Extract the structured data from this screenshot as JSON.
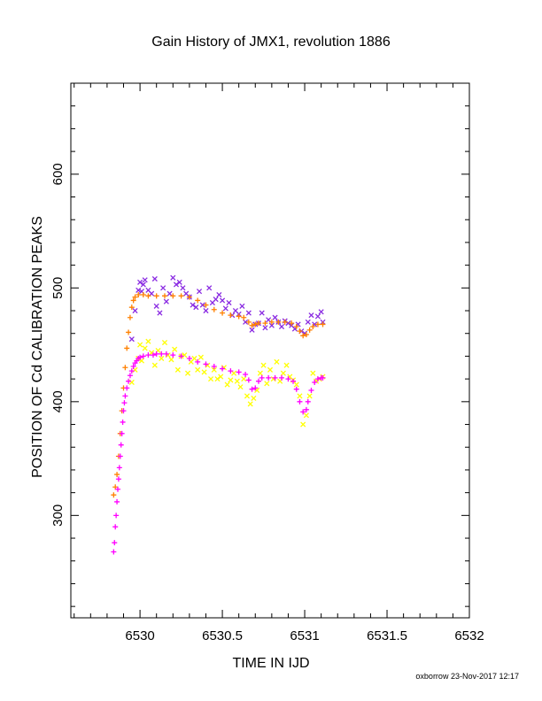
{
  "chart_data": {
    "type": "scatter",
    "title": "Gain History of JMX1, revolution 1886",
    "xlabel": "TIME IN IJD",
    "ylabel": "POSITION OF Cd CALIBRATION PEAKS",
    "xlim": [
      6529.58,
      6532.0
    ],
    "ylim": [
      210,
      680
    ],
    "x_ticks": [
      6530,
      6530.5,
      6531,
      6531.5,
      6532
    ],
    "x_tick_labels": [
      "6530",
      "6530.5",
      "6531",
      "6531.5",
      "6532"
    ],
    "y_ticks": [
      300,
      400,
      500,
      600
    ],
    "y_tick_labels": [
      "300",
      "400",
      "500",
      "600"
    ],
    "grid": false,
    "legend": "none",
    "series": [
      {
        "color": "#8a2be2",
        "marker": "x",
        "points": [
          [
            6529.95,
            455
          ],
          [
            6529.97,
            480
          ],
          [
            6529.99,
            498
          ],
          [
            6530.0,
            505
          ],
          [
            6530.01,
            497
          ],
          [
            6530.02,
            503
          ],
          [
            6530.03,
            507
          ],
          [
            6530.05,
            498
          ],
          [
            6530.07,
            495
          ],
          [
            6530.09,
            508
          ],
          [
            6530.1,
            484
          ],
          [
            6530.12,
            478
          ],
          [
            6530.14,
            500
          ],
          [
            6530.16,
            488
          ],
          [
            6530.18,
            495
          ],
          [
            6530.2,
            509
          ],
          [
            6530.22,
            503
          ],
          [
            6530.24,
            505
          ],
          [
            6530.26,
            500
          ],
          [
            6530.28,
            495
          ],
          [
            6530.3,
            492
          ],
          [
            6530.32,
            485
          ],
          [
            6530.34,
            483
          ],
          [
            6530.36,
            497
          ],
          [
            6530.38,
            485
          ],
          [
            6530.4,
            480
          ],
          [
            6530.42,
            500
          ],
          [
            6530.44,
            487
          ],
          [
            6530.46,
            490
          ],
          [
            6530.48,
            494
          ],
          [
            6530.5,
            489
          ],
          [
            6530.52,
            482
          ],
          [
            6530.54,
            487
          ],
          [
            6530.56,
            476
          ],
          [
            6530.58,
            480
          ],
          [
            6530.6,
            477
          ],
          [
            6530.62,
            484
          ],
          [
            6530.64,
            470
          ],
          [
            6530.66,
            478
          ],
          [
            6530.68,
            463
          ],
          [
            6530.7,
            468
          ],
          [
            6530.72,
            469
          ],
          [
            6530.74,
            478
          ],
          [
            6530.76,
            465
          ],
          [
            6530.78,
            472
          ],
          [
            6530.8,
            467
          ],
          [
            6530.82,
            474
          ],
          [
            6530.84,
            470
          ],
          [
            6530.86,
            466
          ],
          [
            6530.88,
            471
          ],
          [
            6530.9,
            469
          ],
          [
            6530.92,
            467
          ],
          [
            6530.94,
            464
          ],
          [
            6530.96,
            468
          ],
          [
            6530.98,
            462
          ],
          [
            6531.0,
            460
          ],
          [
            6531.02,
            470
          ],
          [
            6531.04,
            476
          ],
          [
            6531.06,
            468
          ],
          [
            6531.08,
            475
          ],
          [
            6531.1,
            479
          ],
          [
            6531.11,
            470
          ]
        ]
      },
      {
        "color": "#ff8000",
        "marker": "+",
        "points": [
          [
            6529.84,
            318
          ],
          [
            6529.85,
            325
          ],
          [
            6529.86,
            336
          ],
          [
            6529.87,
            352
          ],
          [
            6529.88,
            372
          ],
          [
            6529.89,
            392
          ],
          [
            6529.9,
            412
          ],
          [
            6529.91,
            430
          ],
          [
            6529.92,
            447
          ],
          [
            6529.93,
            461
          ],
          [
            6529.94,
            474
          ],
          [
            6529.95,
            483
          ],
          [
            6529.96,
            489
          ],
          [
            6529.97,
            492
          ],
          [
            6529.99,
            494
          ],
          [
            6530.02,
            494
          ],
          [
            6530.05,
            493
          ],
          [
            6530.1,
            493
          ],
          [
            6530.15,
            493
          ],
          [
            6530.2,
            493
          ],
          [
            6530.25,
            493
          ],
          [
            6530.3,
            492
          ],
          [
            6530.35,
            489
          ],
          [
            6530.4,
            485
          ],
          [
            6530.45,
            481
          ],
          [
            6530.5,
            478
          ],
          [
            6530.55,
            476
          ],
          [
            6530.6,
            475
          ],
          [
            6530.63,
            474
          ],
          [
            6530.66,
            470
          ],
          [
            6530.68,
            467
          ],
          [
            6530.7,
            468
          ],
          [
            6530.72,
            469
          ],
          [
            6530.76,
            469
          ],
          [
            6530.8,
            470
          ],
          [
            6530.84,
            470
          ],
          [
            6530.88,
            470
          ],
          [
            6530.92,
            469
          ],
          [
            6530.95,
            466
          ],
          [
            6530.97,
            462
          ],
          [
            6530.99,
            458
          ],
          [
            6531.01,
            459
          ],
          [
            6531.03,
            463
          ],
          [
            6531.05,
            466
          ],
          [
            6531.08,
            468
          ],
          [
            6531.11,
            468
          ]
        ]
      },
      {
        "color": "#ffff00",
        "marker": "x",
        "points": [
          [
            6529.95,
            417
          ],
          [
            6529.97,
            428
          ],
          [
            6529.99,
            438
          ],
          [
            6530.0,
            450
          ],
          [
            6530.01,
            436
          ],
          [
            6530.03,
            447
          ],
          [
            6530.05,
            453
          ],
          [
            6530.07,
            443
          ],
          [
            6530.09,
            432
          ],
          [
            6530.11,
            445
          ],
          [
            6530.13,
            438
          ],
          [
            6530.15,
            452
          ],
          [
            6530.17,
            441
          ],
          [
            6530.19,
            437
          ],
          [
            6530.21,
            446
          ],
          [
            6530.23,
            428
          ],
          [
            6530.25,
            440
          ],
          [
            6530.27,
            441
          ],
          [
            6530.29,
            425
          ],
          [
            6530.31,
            435
          ],
          [
            6530.33,
            438
          ],
          [
            6530.35,
            428
          ],
          [
            6530.37,
            439
          ],
          [
            6530.39,
            426
          ],
          [
            6530.41,
            432
          ],
          [
            6530.43,
            420
          ],
          [
            6530.45,
            428
          ],
          [
            6530.47,
            420
          ],
          [
            6530.49,
            422
          ],
          [
            6530.51,
            430
          ],
          [
            6530.53,
            415
          ],
          [
            6530.55,
            419
          ],
          [
            6530.57,
            425
          ],
          [
            6530.59,
            418
          ],
          [
            6530.61,
            413
          ],
          [
            6530.63,
            420
          ],
          [
            6530.65,
            405
          ],
          [
            6530.67,
            398
          ],
          [
            6530.69,
            403
          ],
          [
            6530.71,
            410
          ],
          [
            6530.73,
            425
          ],
          [
            6530.75,
            432
          ],
          [
            6530.77,
            416
          ],
          [
            6530.79,
            428
          ],
          [
            6530.81,
            420
          ],
          [
            6530.83,
            435
          ],
          [
            6530.85,
            418
          ],
          [
            6530.87,
            425
          ],
          [
            6530.89,
            432
          ],
          [
            6530.91,
            422
          ],
          [
            6530.93,
            419
          ],
          [
            6530.95,
            415
          ],
          [
            6530.97,
            405
          ],
          [
            6530.99,
            380
          ],
          [
            6531.01,
            388
          ],
          [
            6531.03,
            405
          ],
          [
            6531.05,
            425
          ],
          [
            6531.07,
            418
          ],
          [
            6531.09,
            420
          ],
          [
            6531.11,
            422
          ]
        ]
      },
      {
        "color": "#ff00ff",
        "marker": "+",
        "points": [
          [
            6529.84,
            268
          ],
          [
            6529.845,
            276
          ],
          [
            6529.85,
            290
          ],
          [
            6529.855,
            300
          ],
          [
            6529.86,
            312
          ],
          [
            6529.865,
            323
          ],
          [
            6529.87,
            332
          ],
          [
            6529.875,
            342
          ],
          [
            6529.88,
            352
          ],
          [
            6529.885,
            362
          ],
          [
            6529.89,
            372
          ],
          [
            6529.895,
            382
          ],
          [
            6529.9,
            392
          ],
          [
            6529.905,
            399
          ],
          [
            6529.91,
            405
          ],
          [
            6529.92,
            412
          ],
          [
            6529.93,
            418
          ],
          [
            6529.94,
            423
          ],
          [
            6529.95,
            427
          ],
          [
            6529.96,
            431
          ],
          [
            6529.97,
            434
          ],
          [
            6529.98,
            436
          ],
          [
            6529.99,
            438
          ],
          [
            6530.0,
            439
          ],
          [
            6530.02,
            440
          ],
          [
            6530.05,
            441
          ],
          [
            6530.08,
            441
          ],
          [
            6530.1,
            442
          ],
          [
            6530.13,
            442
          ],
          [
            6530.16,
            442
          ],
          [
            6530.2,
            441
          ],
          [
            6530.25,
            440
          ],
          [
            6530.3,
            438
          ],
          [
            6530.35,
            435
          ],
          [
            6530.4,
            433
          ],
          [
            6530.45,
            431
          ],
          [
            6530.5,
            429
          ],
          [
            6530.55,
            427
          ],
          [
            6530.6,
            426
          ],
          [
            6530.64,
            424
          ],
          [
            6530.66,
            419
          ],
          [
            6530.68,
            411
          ],
          [
            6530.7,
            412
          ],
          [
            6530.72,
            418
          ],
          [
            6530.74,
            421
          ],
          [
            6530.78,
            421
          ],
          [
            6530.82,
            421
          ],
          [
            6530.86,
            421
          ],
          [
            6530.9,
            420
          ],
          [
            6530.93,
            418
          ],
          [
            6530.95,
            411
          ],
          [
            6530.97,
            400
          ],
          [
            6530.99,
            391
          ],
          [
            6531.01,
            393
          ],
          [
            6531.02,
            400
          ],
          [
            6531.04,
            410
          ],
          [
            6531.06,
            417
          ],
          [
            6531.08,
            420
          ],
          [
            6531.1,
            421
          ],
          [
            6531.11,
            421
          ]
        ]
      }
    ]
  },
  "footer": {
    "credit": "oxborrow 23-Nov-2017 12:17"
  }
}
